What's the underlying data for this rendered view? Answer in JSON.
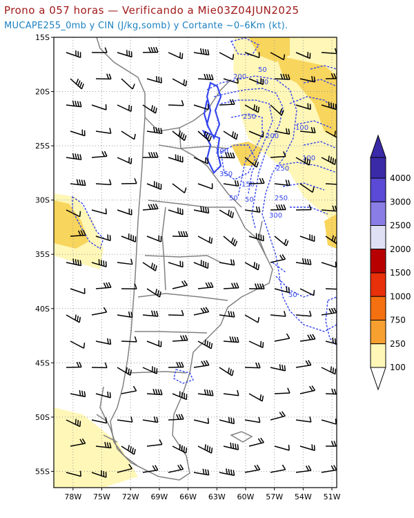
{
  "header": {
    "title": "Prono a 057 horas — Verificando a Mie03Z04JUN2025",
    "subtitle": "MUCAPE255_0mb y CIN (J/kg,somb) y Cortante ~0–6Km (kt)."
  },
  "map": {
    "lon_range": [
      -80,
      -50.5
    ],
    "lat_range": [
      -15,
      -56.5
    ],
    "lat_ticks": [
      "15S",
      "20S",
      "25S",
      "30S",
      "35S",
      "40S",
      "45S",
      "50S",
      "55S"
    ],
    "lon_ticks": [
      "78W",
      "75W",
      "72W",
      "69W",
      "66W",
      "63W",
      "60W",
      "57W",
      "54W",
      "51W"
    ],
    "contour_labels": [
      "50",
      "200",
      "150",
      "250",
      "100",
      "200",
      "300",
      "250",
      "350",
      "150",
      "100",
      "50",
      "250",
      "300",
      "50",
      "50"
    ],
    "colors": {
      "land_border": "#808080",
      "cin_contour": "#3344ee",
      "grid": "#999999"
    }
  },
  "colorbar": {
    "levels": [
      "100",
      "250",
      "750",
      "1000",
      "1500",
      "2000",
      "2500",
      "3000",
      "4000"
    ],
    "colors": [
      "#fff7b8",
      "#f8d55c",
      "#f7a030",
      "#f57010",
      "#e8300a",
      "#b80000",
      "#e0e0f5",
      "#b8b0ef",
      "#8a7de5",
      "#5a4ad6",
      "#3a2aa8"
    ]
  }
}
